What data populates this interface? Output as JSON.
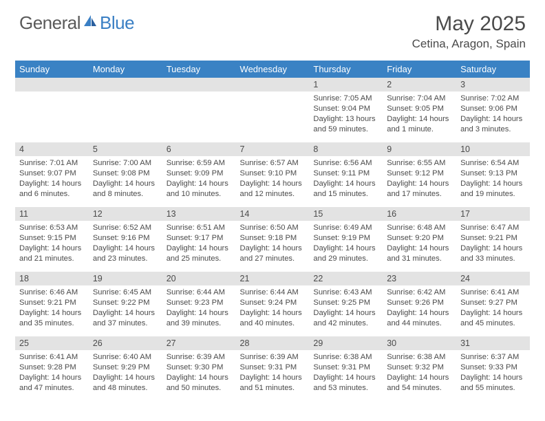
{
  "logo": {
    "general": "General",
    "blue": "Blue"
  },
  "title": "May 2025",
  "location": "Cetina, Aragon, Spain",
  "colors": {
    "header_bg": "#3a82c4",
    "header_text": "#ffffff",
    "daynum_bg": "#e3e3e3",
    "body_text": "#4a4a4a",
    "logo_gray": "#5a5a5a",
    "logo_blue": "#3a7fc4"
  },
  "dayHeaders": [
    "Sunday",
    "Monday",
    "Tuesday",
    "Wednesday",
    "Thursday",
    "Friday",
    "Saturday"
  ],
  "weeks": [
    [
      null,
      null,
      null,
      null,
      {
        "n": "1",
        "sr": "7:05 AM",
        "ss": "9:04 PM",
        "dl": "13 hours and 59 minutes."
      },
      {
        "n": "2",
        "sr": "7:04 AM",
        "ss": "9:05 PM",
        "dl": "14 hours and 1 minute."
      },
      {
        "n": "3",
        "sr": "7:02 AM",
        "ss": "9:06 PM",
        "dl": "14 hours and 3 minutes."
      }
    ],
    [
      {
        "n": "4",
        "sr": "7:01 AM",
        "ss": "9:07 PM",
        "dl": "14 hours and 6 minutes."
      },
      {
        "n": "5",
        "sr": "7:00 AM",
        "ss": "9:08 PM",
        "dl": "14 hours and 8 minutes."
      },
      {
        "n": "6",
        "sr": "6:59 AM",
        "ss": "9:09 PM",
        "dl": "14 hours and 10 minutes."
      },
      {
        "n": "7",
        "sr": "6:57 AM",
        "ss": "9:10 PM",
        "dl": "14 hours and 12 minutes."
      },
      {
        "n": "8",
        "sr": "6:56 AM",
        "ss": "9:11 PM",
        "dl": "14 hours and 15 minutes."
      },
      {
        "n": "9",
        "sr": "6:55 AM",
        "ss": "9:12 PM",
        "dl": "14 hours and 17 minutes."
      },
      {
        "n": "10",
        "sr": "6:54 AM",
        "ss": "9:13 PM",
        "dl": "14 hours and 19 minutes."
      }
    ],
    [
      {
        "n": "11",
        "sr": "6:53 AM",
        "ss": "9:15 PM",
        "dl": "14 hours and 21 minutes."
      },
      {
        "n": "12",
        "sr": "6:52 AM",
        "ss": "9:16 PM",
        "dl": "14 hours and 23 minutes."
      },
      {
        "n": "13",
        "sr": "6:51 AM",
        "ss": "9:17 PM",
        "dl": "14 hours and 25 minutes."
      },
      {
        "n": "14",
        "sr": "6:50 AM",
        "ss": "9:18 PM",
        "dl": "14 hours and 27 minutes."
      },
      {
        "n": "15",
        "sr": "6:49 AM",
        "ss": "9:19 PM",
        "dl": "14 hours and 29 minutes."
      },
      {
        "n": "16",
        "sr": "6:48 AM",
        "ss": "9:20 PM",
        "dl": "14 hours and 31 minutes."
      },
      {
        "n": "17",
        "sr": "6:47 AM",
        "ss": "9:21 PM",
        "dl": "14 hours and 33 minutes."
      }
    ],
    [
      {
        "n": "18",
        "sr": "6:46 AM",
        "ss": "9:21 PM",
        "dl": "14 hours and 35 minutes."
      },
      {
        "n": "19",
        "sr": "6:45 AM",
        "ss": "9:22 PM",
        "dl": "14 hours and 37 minutes."
      },
      {
        "n": "20",
        "sr": "6:44 AM",
        "ss": "9:23 PM",
        "dl": "14 hours and 39 minutes."
      },
      {
        "n": "21",
        "sr": "6:44 AM",
        "ss": "9:24 PM",
        "dl": "14 hours and 40 minutes."
      },
      {
        "n": "22",
        "sr": "6:43 AM",
        "ss": "9:25 PM",
        "dl": "14 hours and 42 minutes."
      },
      {
        "n": "23",
        "sr": "6:42 AM",
        "ss": "9:26 PM",
        "dl": "14 hours and 44 minutes."
      },
      {
        "n": "24",
        "sr": "6:41 AM",
        "ss": "9:27 PM",
        "dl": "14 hours and 45 minutes."
      }
    ],
    [
      {
        "n": "25",
        "sr": "6:41 AM",
        "ss": "9:28 PM",
        "dl": "14 hours and 47 minutes."
      },
      {
        "n": "26",
        "sr": "6:40 AM",
        "ss": "9:29 PM",
        "dl": "14 hours and 48 minutes."
      },
      {
        "n": "27",
        "sr": "6:39 AM",
        "ss": "9:30 PM",
        "dl": "14 hours and 50 minutes."
      },
      {
        "n": "28",
        "sr": "6:39 AM",
        "ss": "9:31 PM",
        "dl": "14 hours and 51 minutes."
      },
      {
        "n": "29",
        "sr": "6:38 AM",
        "ss": "9:31 PM",
        "dl": "14 hours and 53 minutes."
      },
      {
        "n": "30",
        "sr": "6:38 AM",
        "ss": "9:32 PM",
        "dl": "14 hours and 54 minutes."
      },
      {
        "n": "31",
        "sr": "6:37 AM",
        "ss": "9:33 PM",
        "dl": "14 hours and 55 minutes."
      }
    ]
  ],
  "labels": {
    "sunrise": "Sunrise: ",
    "sunset": "Sunset: ",
    "daylight": "Daylight: "
  }
}
